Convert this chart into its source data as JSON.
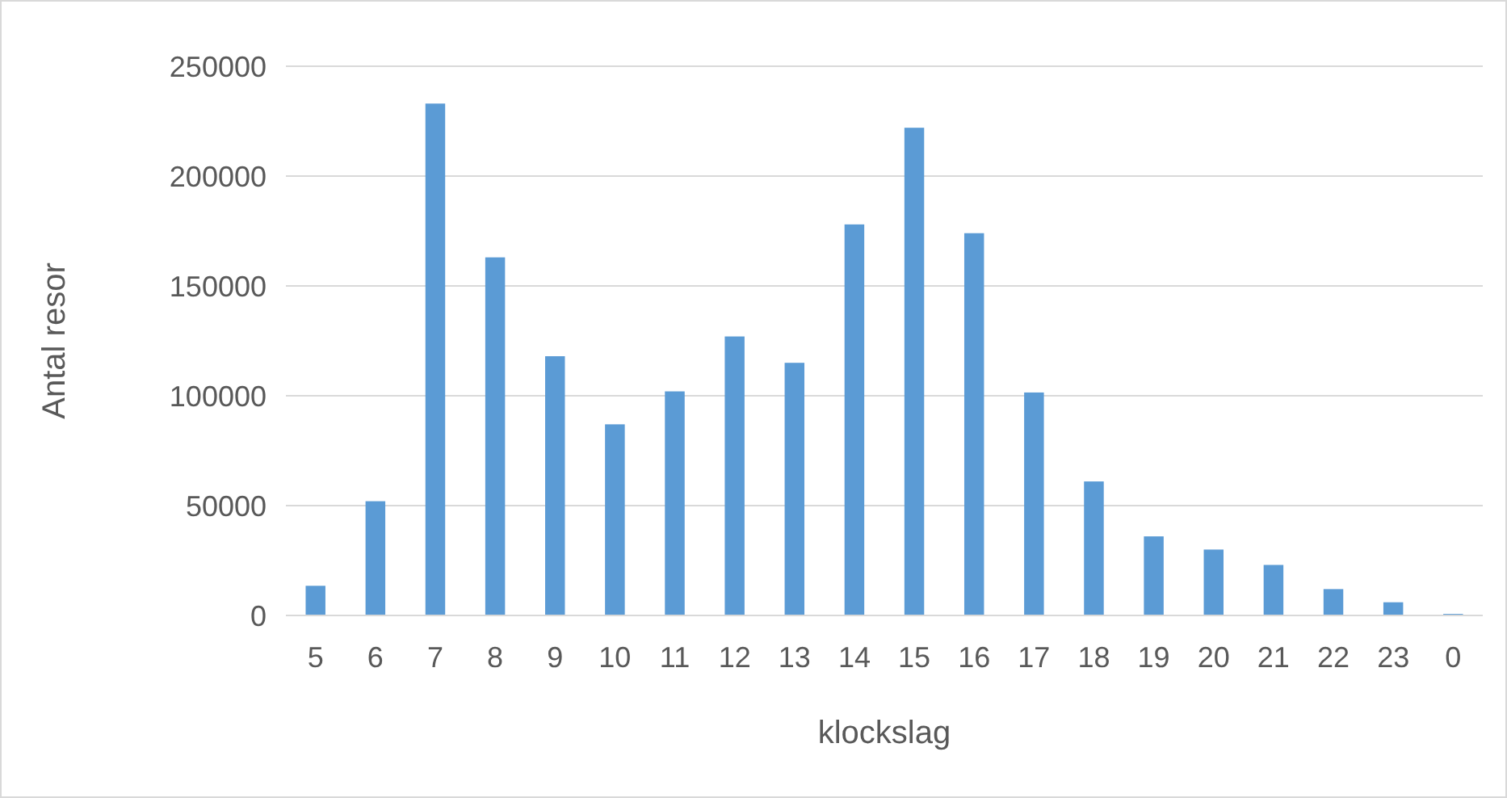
{
  "chart_data": {
    "type": "bar",
    "xlabel": "klockslag",
    "ylabel": "Antal resor",
    "categories": [
      "5",
      "6",
      "7",
      "8",
      "9",
      "10",
      "11",
      "12",
      "13",
      "14",
      "15",
      "16",
      "17",
      "18",
      "19",
      "20",
      "21",
      "22",
      "23",
      "0"
    ],
    "values": [
      13500,
      52000,
      233000,
      163000,
      118000,
      87000,
      102000,
      127000,
      115000,
      178000,
      222000,
      174000,
      101500,
      61000,
      36000,
      30000,
      23000,
      12000,
      6000,
      700
    ],
    "color": "#5b9bd5",
    "ylim": [
      0,
      250000
    ],
    "yticks": [
      0,
      50000,
      100000,
      150000,
      200000,
      250000
    ],
    "grid": "y"
  }
}
